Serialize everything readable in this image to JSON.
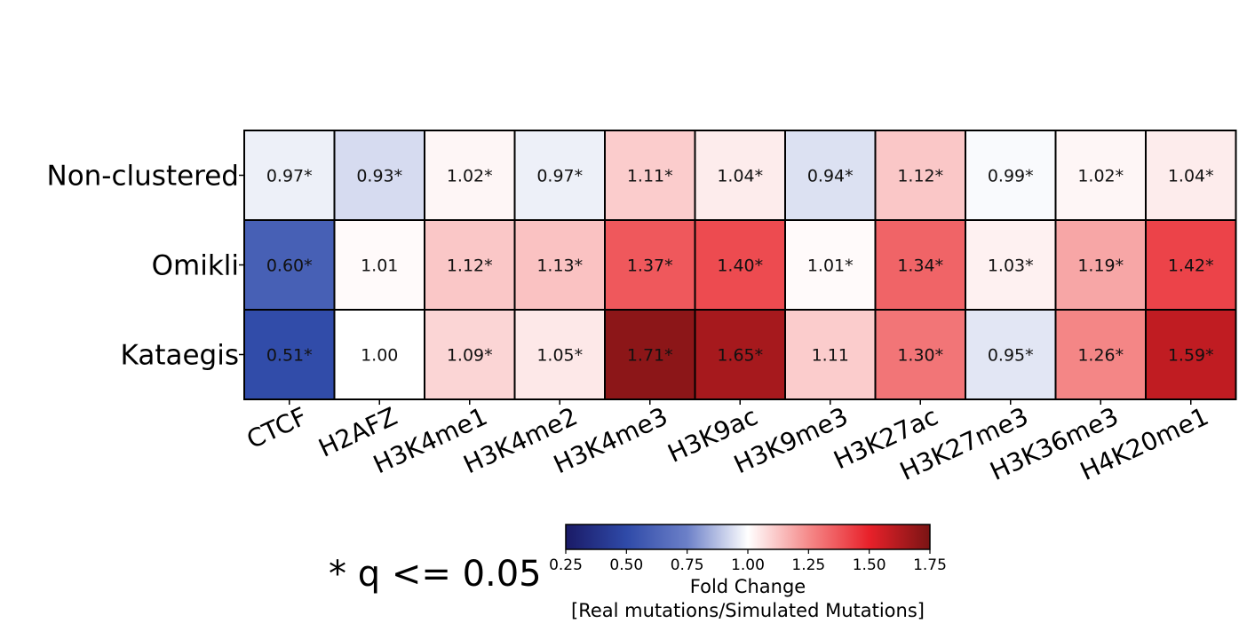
{
  "chart_data": {
    "type": "heatmap",
    "rows": [
      "Non-clustered",
      "Omikli",
      "Kataegis"
    ],
    "columns": [
      "CTCF",
      "H2AFZ",
      "H3K4me1",
      "H3K4me2",
      "H3K4me3",
      "H3K9ac",
      "H3K9me3",
      "H3K27ac",
      "H3K27me3",
      "H3K36me3",
      "H4K20me1"
    ],
    "values": [
      [
        0.97,
        0.93,
        1.02,
        0.97,
        1.11,
        1.04,
        0.94,
        1.12,
        0.99,
        1.02,
        1.04
      ],
      [
        0.6,
        1.01,
        1.12,
        1.13,
        1.37,
        1.4,
        1.01,
        1.34,
        1.03,
        1.19,
        1.42
      ],
      [
        0.51,
        1.0,
        1.09,
        1.05,
        1.71,
        1.65,
        1.11,
        1.3,
        0.95,
        1.26,
        1.59
      ]
    ],
    "cell_labels": [
      [
        "0.97*",
        "0.93*",
        "1.02*",
        "0.97*",
        "1.11*",
        "1.04*",
        "0.94*",
        "1.12*",
        "0.99*",
        "1.02*",
        "1.04*"
      ],
      [
        "0.60*",
        "1.01",
        "1.12*",
        "1.13*",
        "1.37*",
        "1.40*",
        "1.01*",
        "1.34*",
        "1.03*",
        "1.19*",
        "1.42*"
      ],
      [
        "0.51*",
        "1.00",
        "1.09*",
        "1.05*",
        "1.71*",
        "1.65*",
        "1.11",
        "1.30*",
        "0.95*",
        "1.26*",
        "1.59*"
      ]
    ],
    "colorbar": {
      "min": 0.25,
      "max": 1.75,
      "center": 1.0,
      "ticks": [
        "0.25",
        "0.50",
        "0.75",
        "1.00",
        "1.25",
        "1.50",
        "1.75"
      ],
      "label_line1": "Fold Change",
      "label_line2": "[Real mutations/Simulated Mutations]",
      "colors": [
        "#1a1a66",
        "#2f4aa8",
        "#6c80c8",
        "#ffffff",
        "#f58a8a",
        "#e8212a",
        "#7a1414"
      ]
    },
    "footnote": "* q <= 0.05"
  }
}
